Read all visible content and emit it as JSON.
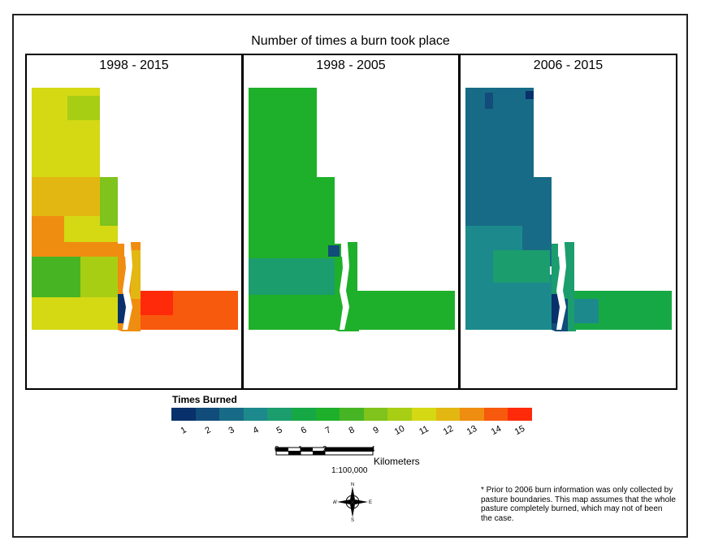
{
  "title": "Number of times a burn took place",
  "panels": [
    {
      "title": "1998 - 2015",
      "scheme": "full"
    },
    {
      "title": "1998 - 2005",
      "scheme": "early"
    },
    {
      "title": "2006 - 2015",
      "scheme": "late"
    }
  ],
  "legend": {
    "title": "Times Burned",
    "classes": [
      {
        "label": "1",
        "color": "#08306b"
      },
      {
        "label": "2",
        "color": "#114c7a"
      },
      {
        "label": "3",
        "color": "#186b86"
      },
      {
        "label": "4",
        "color": "#1c8a8c"
      },
      {
        "label": "5",
        "color": "#1b9d6e"
      },
      {
        "label": "6",
        "color": "#17a846"
      },
      {
        "label": "7",
        "color": "#1eb02a"
      },
      {
        "label": "8",
        "color": "#47b523"
      },
      {
        "label": "9",
        "color": "#7fc31c"
      },
      {
        "label": "10",
        "color": "#a8ce14"
      },
      {
        "label": "11",
        "color": "#d4d914"
      },
      {
        "label": "12",
        "color": "#e3b712"
      },
      {
        "label": "13",
        "color": "#ef8d10"
      },
      {
        "label": "14",
        "color": "#f7590d"
      },
      {
        "label": "15",
        "color": "#ff2a0a"
      }
    ]
  },
  "scale": {
    "ticks": [
      "0",
      "1",
      "2",
      "4"
    ],
    "unit": "Kilometers",
    "ratio": "1:100,000"
  },
  "compass": {
    "n": "N",
    "s": "S",
    "e": "E",
    "w": "W"
  },
  "note": "* Prior to 2006 burn information was only collected by pasture boundaries. This map assumes that the whole pasture completely burned, which may not of been the case."
}
